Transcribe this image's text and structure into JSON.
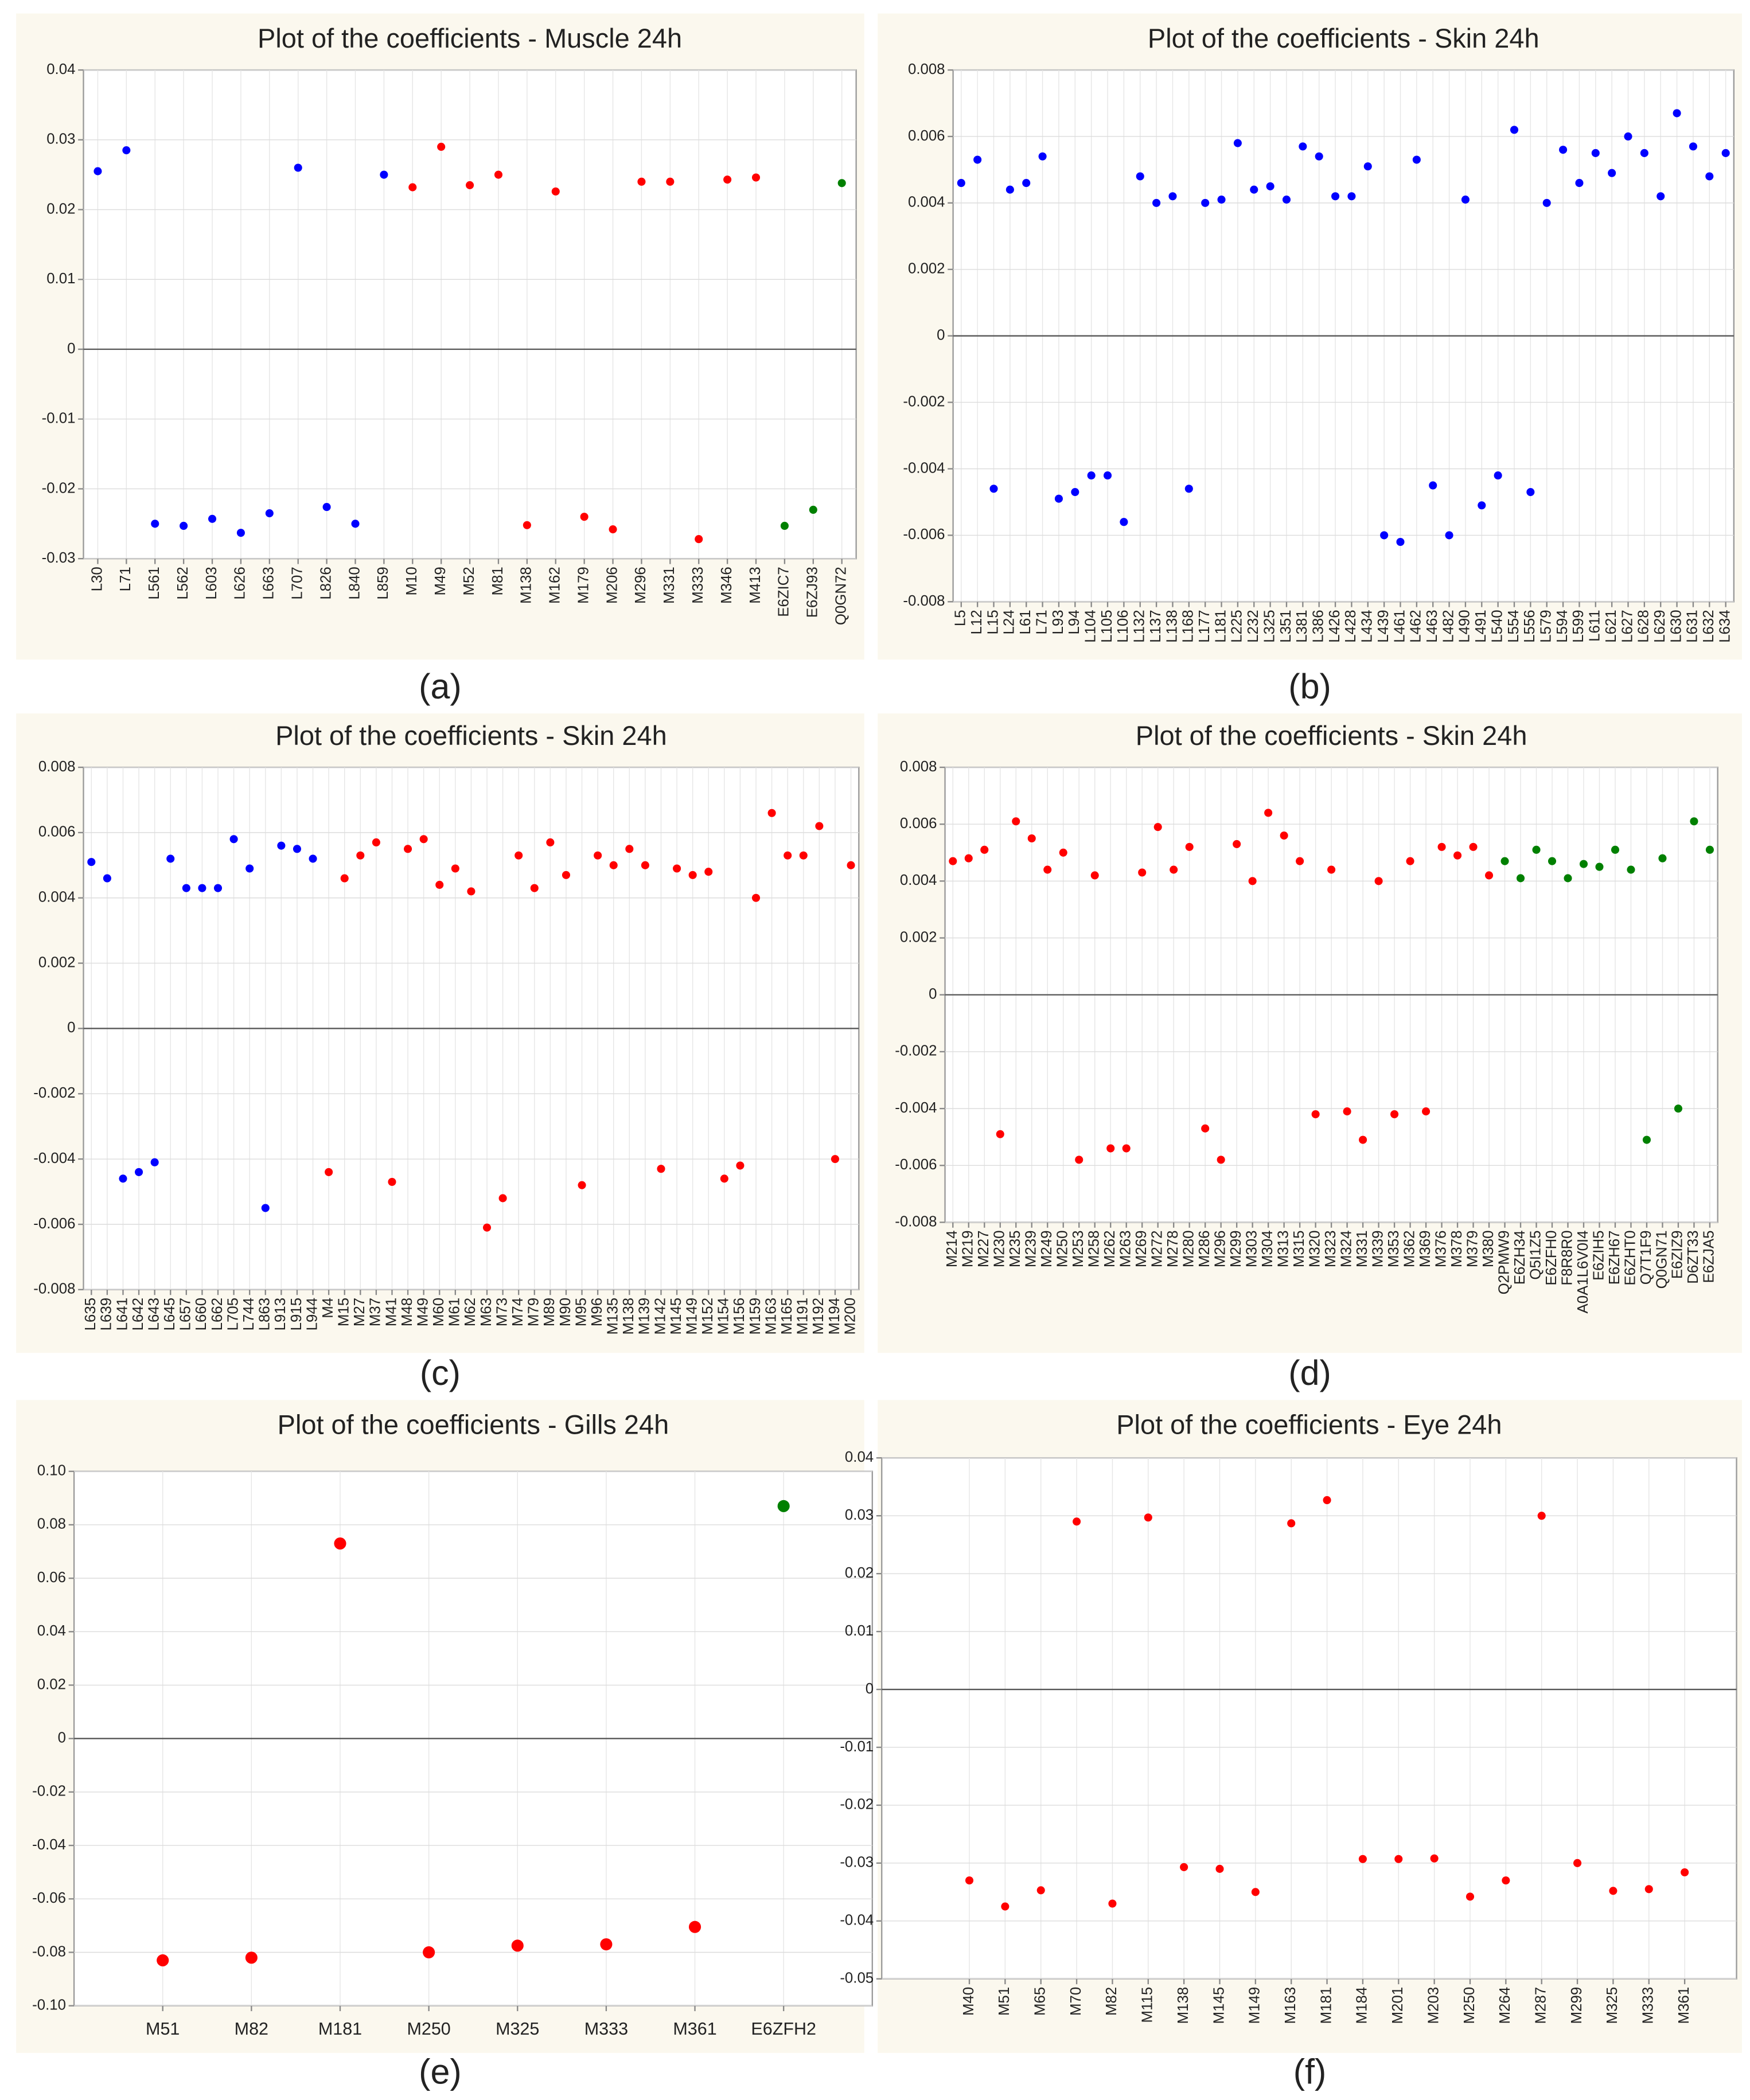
{
  "chart_data": [
    {
      "type": "scatter",
      "title": "Plot of the coefficients - Muscle 24h",
      "label": "(a)",
      "categories": [
        "L30",
        "L71",
        "L561",
        "L562",
        "L603",
        "L626",
        "L663",
        "L707",
        "L826",
        "L840",
        "L859",
        "M10",
        "M49",
        "M52",
        "M81",
        "M138",
        "M162",
        "M179",
        "M206",
        "M296",
        "M331",
        "M333",
        "M346",
        "M413",
        "E6ZIC7",
        "E6ZJ93",
        "Q0GN72"
      ],
      "values": [
        0.0255,
        0.0285,
        -0.025,
        -0.0253,
        -0.0243,
        -0.0263,
        -0.0235,
        0.026,
        -0.0226,
        -0.025,
        0.025,
        0.0232,
        0.029,
        0.0235,
        0.025,
        -0.0252,
        0.0226,
        -0.024,
        -0.0258,
        0.024,
        0.024,
        -0.0272,
        0.0243,
        0.0246,
        -0.0253,
        -0.023,
        0.0238
      ],
      "colors": [
        "#0000ff",
        "#0000ff",
        "#0000ff",
        "#0000ff",
        "#0000ff",
        "#0000ff",
        "#0000ff",
        "#0000ff",
        "#0000ff",
        "#0000ff",
        "#0000ff",
        "#ff0000",
        "#ff0000",
        "#ff0000",
        "#ff0000",
        "#ff0000",
        "#ff0000",
        "#ff0000",
        "#ff0000",
        "#ff0000",
        "#ff0000",
        "#ff0000",
        "#ff0000",
        "#ff0000",
        "#008000",
        "#008000",
        "#008000"
      ],
      "ylim": [
        -0.03,
        0.04
      ],
      "yticks": [
        -0.03,
        -0.02,
        -0.01,
        0,
        0.01,
        0.02,
        0.03,
        0.04
      ],
      "grid": true
    },
    {
      "type": "scatter",
      "title": "Plot of the coefficients - Skin 24h",
      "label": "(b)",
      "categories": [
        "L5",
        "L12",
        "L15",
        "L24",
        "L61",
        "L71",
        "L93",
        "L94",
        "L104",
        "L105",
        "L106",
        "L132",
        "L137",
        "L138",
        "L168",
        "L177",
        "L181",
        "L225",
        "L232",
        "L325",
        "L351",
        "L381",
        "L386",
        "L426",
        "L428",
        "L434",
        "L439",
        "L461",
        "L462",
        "L463",
        "L482",
        "L490",
        "L491",
        "L540",
        "L554",
        "L556",
        "L579",
        "L594",
        "L599",
        "L611",
        "L621",
        "L627",
        "L628",
        "L629",
        "L630",
        "L631",
        "L632",
        "L634"
      ],
      "values": [
        0.0046,
        0.0053,
        -0.0046,
        0.0044,
        0.0046,
        0.0054,
        -0.0049,
        -0.0047,
        -0.0042,
        -0.0042,
        -0.0056,
        0.0048,
        0.004,
        0.0042,
        -0.0046,
        0.004,
        0.0041,
        0.0058,
        0.0044,
        0.0045,
        0.0041,
        0.0057,
        0.0054,
        0.0042,
        0.0042,
        0.0051,
        -0.006,
        -0.0062,
        0.0053,
        -0.0045,
        -0.006,
        0.0041,
        -0.0051,
        -0.0042,
        0.0062,
        -0.0047,
        0.004,
        0.0056,
        0.0046,
        0.0055,
        0.0049,
        0.006,
        0.0055,
        0.0042,
        0.0067,
        0.0057,
        0.0048,
        0.0055
      ],
      "colors": [
        "#0000ff",
        "#0000ff",
        "#0000ff",
        "#0000ff",
        "#0000ff",
        "#0000ff",
        "#0000ff",
        "#0000ff",
        "#0000ff",
        "#0000ff",
        "#0000ff",
        "#0000ff",
        "#0000ff",
        "#0000ff",
        "#0000ff",
        "#0000ff",
        "#0000ff",
        "#0000ff",
        "#0000ff",
        "#0000ff",
        "#0000ff",
        "#0000ff",
        "#0000ff",
        "#0000ff",
        "#0000ff",
        "#0000ff",
        "#0000ff",
        "#0000ff",
        "#0000ff",
        "#0000ff",
        "#0000ff",
        "#0000ff",
        "#0000ff",
        "#0000ff",
        "#0000ff",
        "#0000ff",
        "#0000ff",
        "#0000ff",
        "#0000ff",
        "#0000ff",
        "#0000ff",
        "#0000ff",
        "#0000ff",
        "#0000ff",
        "#0000ff",
        "#0000ff",
        "#0000ff",
        "#0000ff"
      ],
      "ylim": [
        -0.008,
        0.008
      ],
      "yticks": [
        -0.008,
        -0.006,
        -0.004,
        -0.002,
        0,
        0.002,
        0.004,
        0.006,
        0.008
      ],
      "grid": true
    },
    {
      "type": "scatter",
      "title": "Plot of the coefficients - Skin 24h",
      "label": "(c)",
      "categories": [
        "L635",
        "L639",
        "L641",
        "L642",
        "L643",
        "L645",
        "L657",
        "L660",
        "L662",
        "L705",
        "L744",
        "L863",
        "L913",
        "L915",
        "L944",
        "M4",
        "M15",
        "M27",
        "M37",
        "M41",
        "M48",
        "M49",
        "M60",
        "M61",
        "M62",
        "M63",
        "M73",
        "M74",
        "M79",
        "M89",
        "M90",
        "M95",
        "M96",
        "M135",
        "M138",
        "M139",
        "M142",
        "M145",
        "M149",
        "M152",
        "M154",
        "M156",
        "M159",
        "M163",
        "M165",
        "M191",
        "M192",
        "M194",
        "M200"
      ],
      "values": [
        0.0051,
        0.0046,
        -0.0046,
        -0.0044,
        -0.0041,
        0.0052,
        0.0043,
        0.0043,
        0.0043,
        0.0058,
        0.0049,
        -0.0055,
        0.0056,
        0.0055,
        0.0052,
        -0.0044,
        0.0046,
        0.0053,
        0.0057,
        -0.0047,
        0.0055,
        0.0058,
        0.0044,
        0.0049,
        0.0042,
        -0.0061,
        -0.0052,
        0.0053,
        0.0043,
        0.0057,
        0.0047,
        -0.0048,
        0.0053,
        0.005,
        0.0055,
        0.005,
        -0.0043,
        0.0049,
        0.0047,
        0.0048,
        -0.0046,
        -0.0042,
        0.004,
        0.0066,
        0.0053,
        0.0053,
        0.0062,
        -0.004,
        0.005
      ],
      "colors": [
        "#0000ff",
        "#0000ff",
        "#0000ff",
        "#0000ff",
        "#0000ff",
        "#0000ff",
        "#0000ff",
        "#0000ff",
        "#0000ff",
        "#0000ff",
        "#0000ff",
        "#0000ff",
        "#0000ff",
        "#0000ff",
        "#0000ff",
        "#ff0000",
        "#ff0000",
        "#ff0000",
        "#ff0000",
        "#ff0000",
        "#ff0000",
        "#ff0000",
        "#ff0000",
        "#ff0000",
        "#ff0000",
        "#ff0000",
        "#ff0000",
        "#ff0000",
        "#ff0000",
        "#ff0000",
        "#ff0000",
        "#ff0000",
        "#ff0000",
        "#ff0000",
        "#ff0000",
        "#ff0000",
        "#ff0000",
        "#ff0000",
        "#ff0000",
        "#ff0000",
        "#ff0000",
        "#ff0000",
        "#ff0000",
        "#ff0000",
        "#ff0000",
        "#ff0000",
        "#ff0000",
        "#ff0000",
        "#ff0000"
      ],
      "ylim": [
        -0.008,
        0.008
      ],
      "yticks": [
        -0.008,
        -0.006,
        -0.004,
        -0.002,
        0,
        0.002,
        0.004,
        0.006,
        0.008
      ],
      "grid": true
    },
    {
      "type": "scatter",
      "title": "Plot of the coefficients - Skin 24h",
      "label": "(d)",
      "categories": [
        "M214",
        "M219",
        "M227",
        "M230",
        "M235",
        "M239",
        "M249",
        "M250",
        "M253",
        "M258",
        "M262",
        "M263",
        "M269",
        "M272",
        "M278",
        "M280",
        "M286",
        "M296",
        "M299",
        "M303",
        "M304",
        "M313",
        "M315",
        "M320",
        "M323",
        "M324",
        "M331",
        "M339",
        "M353",
        "M362",
        "M369",
        "M376",
        "M378",
        "M379",
        "M380",
        "Q2PMW9",
        "E6ZH34",
        "Q5I1Z5",
        "E6ZFH0",
        "F8R8R0",
        "A0A1L6V0I4",
        "E6ZIH5",
        "E6ZH67",
        "E6ZHT0",
        "Q7T1F9",
        "Q0GN71",
        "E6ZIZ9",
        "D6ZT33",
        "E6ZJA5"
      ],
      "values": [
        0.0047,
        0.0048,
        0.0051,
        -0.0049,
        0.0061,
        0.0055,
        0.0044,
        0.005,
        -0.0058,
        0.0042,
        -0.0054,
        -0.0054,
        0.0043,
        0.0059,
        0.0044,
        0.0052,
        -0.0047,
        -0.0058,
        0.0053,
        0.004,
        0.0064,
        0.0056,
        0.0047,
        -0.0042,
        0.0044,
        -0.0041,
        -0.0051,
        0.004,
        -0.0042,
        0.0047,
        -0.0041,
        0.0052,
        0.0049,
        0.0052,
        0.0042,
        0.0047,
        0.0041,
        0.0051,
        0.0047,
        0.0041,
        0.0046,
        0.0045,
        0.0051,
        0.0044,
        -0.0051,
        0.0048,
        -0.004,
        0.0061,
        0.0051
      ],
      "colors": [
        "#ff0000",
        "#ff0000",
        "#ff0000",
        "#ff0000",
        "#ff0000",
        "#ff0000",
        "#ff0000",
        "#ff0000",
        "#ff0000",
        "#ff0000",
        "#ff0000",
        "#ff0000",
        "#ff0000",
        "#ff0000",
        "#ff0000",
        "#ff0000",
        "#ff0000",
        "#ff0000",
        "#ff0000",
        "#ff0000",
        "#ff0000",
        "#ff0000",
        "#ff0000",
        "#ff0000",
        "#ff0000",
        "#ff0000",
        "#ff0000",
        "#ff0000",
        "#ff0000",
        "#ff0000",
        "#ff0000",
        "#ff0000",
        "#ff0000",
        "#ff0000",
        "#ff0000",
        "#008000",
        "#008000",
        "#008000",
        "#008000",
        "#008000",
        "#008000",
        "#008000",
        "#008000",
        "#008000",
        "#008000",
        "#008000",
        "#008000",
        "#008000",
        "#008000"
      ],
      "ylim": [
        -0.008,
        0.008
      ],
      "yticks": [
        -0.008,
        -0.006,
        -0.004,
        -0.002,
        0,
        0.002,
        0.004,
        0.006,
        0.008
      ],
      "grid": true
    },
    {
      "type": "scatter",
      "title": "Plot of the coefficients - Gills 24h",
      "label": "(e)",
      "categories": [
        "M51",
        "M82",
        "M181",
        "M250",
        "M325",
        "M333",
        "M361",
        "E6ZFH2"
      ],
      "values": [
        -0.083,
        -0.082,
        0.073,
        -0.08,
        -0.0775,
        -0.077,
        -0.0705,
        0.087
      ],
      "colors": [
        "#ff0000",
        "#ff0000",
        "#ff0000",
        "#ff0000",
        "#ff0000",
        "#ff0000",
        "#ff0000",
        "#008000"
      ],
      "ylim": [
        -0.1,
        0.1
      ],
      "yticks": [
        {
          "value": -0.1,
          "label": "-0.10"
        },
        -0.08,
        -0.06,
        -0.04,
        -0.02,
        0,
        0.02,
        0.04,
        0.06,
        0.08,
        {
          "value": 0.1,
          "label": "0.10"
        }
      ],
      "grid": true
    },
    {
      "type": "scatter",
      "title": "Plot of the coefficients - Eye 24h",
      "label": "(f)",
      "categories": [
        "M40",
        "M51",
        "M65",
        "M70",
        "M82",
        "M115",
        "M138",
        "M145",
        "M149",
        "M163",
        "M181",
        "M184",
        "M201",
        "M203",
        "M250",
        "M264",
        "M287",
        "M299",
        "M325",
        "M333",
        "M361"
      ],
      "values": [
        -0.033,
        -0.0375,
        -0.0347,
        0.029,
        -0.037,
        0.0297,
        -0.0307,
        -0.031,
        -0.035,
        0.0287,
        0.0327,
        -0.0293,
        -0.0293,
        -0.0292,
        -0.0358,
        -0.033,
        0.03,
        -0.03,
        -0.0348,
        -0.0345,
        -0.0316
      ],
      "colors": [
        "#ff0000",
        "#ff0000",
        "#ff0000",
        "#ff0000",
        "#ff0000",
        "#ff0000",
        "#ff0000",
        "#ff0000",
        "#ff0000",
        "#ff0000",
        "#ff0000",
        "#ff0000",
        "#ff0000",
        "#ff0000",
        "#ff0000",
        "#ff0000",
        "#ff0000",
        "#ff0000",
        "#ff0000",
        "#ff0000",
        "#ff0000"
      ],
      "ylim": [
        -0.05,
        0.04
      ],
      "yticks": [
        -0.05,
        -0.04,
        -0.03,
        -0.02,
        -0.01,
        0,
        0.01,
        0.02,
        0.03,
        0.04
      ],
      "grid": true
    }
  ]
}
